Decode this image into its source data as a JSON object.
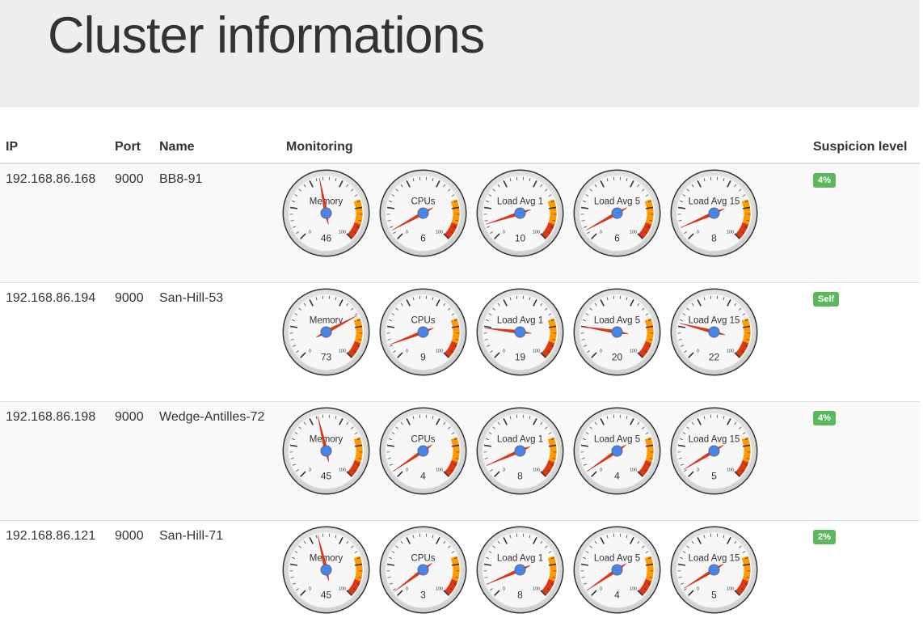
{
  "page": {
    "title": "Cluster informations"
  },
  "table": {
    "headers": {
      "ip": "IP",
      "port": "Port",
      "name": "Name",
      "monitoring": "Monitoring",
      "suspicion": "Suspicion level"
    },
    "gauge_labels": [
      "Memory",
      "CPUs",
      "Load Avg 1",
      "Load Avg 5",
      "Load Avg 15"
    ],
    "gauge_scale": {
      "min": "0",
      "max": "100"
    },
    "rows": [
      {
        "ip": "192.168.86.168",
        "port": "9000",
        "name": "BB8-91",
        "gauges": [
          46,
          6,
          10,
          6,
          8
        ],
        "suspicion": "4%"
      },
      {
        "ip": "192.168.86.194",
        "port": "9000",
        "name": "San-Hill-53",
        "gauges": [
          73,
          9,
          19,
          20,
          22
        ],
        "suspicion": "Self"
      },
      {
        "ip": "192.168.86.198",
        "port": "9000",
        "name": "Wedge-Antilles-72",
        "gauges": [
          45,
          4,
          8,
          4,
          5
        ],
        "suspicion": "4%"
      },
      {
        "ip": "192.168.86.121",
        "port": "9000",
        "name": "San-Hill-71",
        "gauges": [
          45,
          3,
          8,
          4,
          5
        ],
        "suspicion": "2%"
      }
    ]
  },
  "colors": {
    "badge": "#5cb85c",
    "gauge_orange": "#ff9900",
    "gauge_red": "#dc3912",
    "needle": "#dc3912",
    "hub": "#4684ee"
  }
}
